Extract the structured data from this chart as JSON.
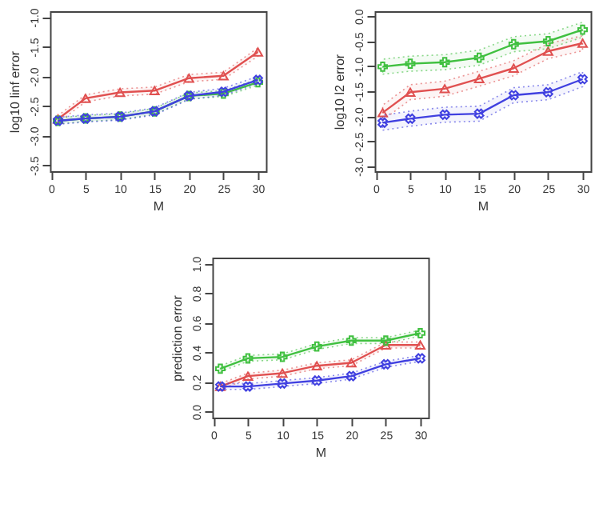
{
  "chart_data": [
    {
      "type": "line",
      "x": [
        1,
        5,
        10,
        15,
        20,
        25,
        30
      ],
      "xlabel": "M",
      "ylabel": "log10 linf error",
      "xlim": [
        -0.16,
        31.16
      ],
      "xticks": [
        0,
        5,
        10,
        15,
        20,
        25,
        30
      ],
      "ylim": [
        -3.6,
        -0.9
      ],
      "yticks": [
        -3.5,
        {
          "value": -3,
          "label": "-3.0"
        },
        -2.5,
        {
          "value": -2,
          "label": "-2.0"
        },
        -1.5,
        {
          "value": -1,
          "label": "-1.0"
        }
      ],
      "line_style": "solid",
      "series": [
        {
          "color": "#e05050",
          "marker": "triangle",
          "values": [
            -2.72,
            -2.37,
            -2.27,
            -2.24,
            -2.03,
            -1.99,
            -1.59
          ],
          "lower": [
            -2.78,
            -2.43,
            -2.33,
            -2.3,
            -2.09,
            -2.05,
            -1.66
          ],
          "upper": [
            -2.66,
            -2.31,
            -2.21,
            -2.18,
            -1.97,
            -1.93,
            -1.52
          ]
        },
        {
          "color": "#40c040",
          "marker": "plus",
          "values": [
            -2.75,
            -2.71,
            -2.68,
            -2.59,
            -2.33,
            -2.29,
            -2.1
          ],
          "lower": [
            -2.8,
            -2.76,
            -2.73,
            -2.64,
            -2.38,
            -2.34,
            -2.15
          ],
          "upper": [
            -2.7,
            -2.66,
            -2.63,
            -2.54,
            -2.28,
            -2.24,
            -2.05
          ]
        },
        {
          "color": "#4040e0",
          "marker": "cross",
          "values": [
            -2.75,
            -2.71,
            -2.68,
            -2.59,
            -2.33,
            -2.26,
            -2.06
          ],
          "lower": [
            -2.81,
            -2.77,
            -2.74,
            -2.65,
            -2.39,
            -2.32,
            -2.12
          ],
          "upper": [
            -2.69,
            -2.65,
            -2.62,
            -2.53,
            -2.27,
            -2.2,
            -2.0
          ]
        }
      ]
    },
    {
      "type": "line",
      "x": [
        1,
        5,
        10,
        15,
        20,
        25,
        30
      ],
      "xlabel": "M",
      "ylabel": "log10 l2 error",
      "xlim": [
        -0.16,
        31.16
      ],
      "xticks": [
        0,
        5,
        10,
        15,
        20,
        25,
        30
      ],
      "ylim": [
        -3.1,
        0.1
      ],
      "yticks": [
        {
          "value": -3,
          "label": "-3.0"
        },
        -2.5,
        {
          "value": -2,
          "label": "-2.0"
        },
        -1.5,
        {
          "value": -1,
          "label": "-1.0"
        },
        -0.5,
        {
          "value": 0,
          "label": "0.0"
        }
      ],
      "line_style": "solid",
      "series": [
        {
          "color": "#e05050",
          "marker": "triangle",
          "values": [
            -1.93,
            -1.52,
            -1.45,
            -1.25,
            -1.04,
            -0.7,
            -0.54
          ],
          "lower": [
            -2.08,
            -1.67,
            -1.6,
            -1.4,
            -1.19,
            -0.85,
            -0.69
          ],
          "upper": [
            -1.78,
            -1.37,
            -1.3,
            -1.1,
            -0.89,
            -0.55,
            -0.39
          ]
        },
        {
          "color": "#40c040",
          "marker": "plus",
          "values": [
            -1.01,
            -0.95,
            -0.92,
            -0.83,
            -0.56,
            -0.5,
            -0.27
          ],
          "lower": [
            -1.16,
            -1.1,
            -1.07,
            -0.98,
            -0.71,
            -0.65,
            -0.42
          ],
          "upper": [
            -0.86,
            -0.8,
            -0.77,
            -0.68,
            -0.41,
            -0.35,
            -0.12
          ]
        },
        {
          "color": "#4040e0",
          "marker": "cross",
          "values": [
            -2.13,
            -2.05,
            -1.97,
            -1.95,
            -1.58,
            -1.52,
            -1.26
          ],
          "lower": [
            -2.28,
            -2.2,
            -2.12,
            -2.1,
            -1.73,
            -1.67,
            -1.41
          ],
          "upper": [
            -1.98,
            -1.9,
            -1.82,
            -1.8,
            -1.43,
            -1.37,
            -1.11
          ]
        }
      ]
    },
    {
      "type": "line",
      "x": [
        1,
        5,
        10,
        15,
        20,
        25,
        30
      ],
      "xlabel": "M",
      "ylabel": "prediction error",
      "xlim": [
        -0.16,
        31.16
      ],
      "xticks": [
        0,
        5,
        10,
        15,
        20,
        25,
        30
      ],
      "ylim": [
        -0.04,
        1.04
      ],
      "yticks": [
        {
          "value": 0,
          "label": "0.0"
        },
        0.2,
        0.4,
        0.6,
        0.8,
        {
          "value": 1,
          "label": "1.0"
        }
      ],
      "line_style": "solid",
      "series": [
        {
          "color": "#e05050",
          "marker": "triangle",
          "values": [
            0.17,
            0.24,
            0.26,
            0.31,
            0.33,
            0.45,
            0.45
          ],
          "lower": [
            0.15,
            0.22,
            0.24,
            0.29,
            0.31,
            0.43,
            0.43
          ],
          "upper": [
            0.19,
            0.26,
            0.28,
            0.33,
            0.35,
            0.47,
            0.47
          ]
        },
        {
          "color": "#40c040",
          "marker": "plus",
          "values": [
            0.29,
            0.36,
            0.37,
            0.44,
            0.48,
            0.48,
            0.53
          ],
          "lower": [
            0.27,
            0.34,
            0.35,
            0.42,
            0.46,
            0.46,
            0.51
          ],
          "upper": [
            0.31,
            0.38,
            0.39,
            0.46,
            0.5,
            0.5,
            0.55
          ]
        },
        {
          "color": "#4040e0",
          "marker": "cross",
          "values": [
            0.17,
            0.17,
            0.19,
            0.21,
            0.24,
            0.32,
            0.36
          ],
          "lower": [
            0.15,
            0.15,
            0.17,
            0.19,
            0.22,
            0.3,
            0.34
          ],
          "upper": [
            0.19,
            0.19,
            0.21,
            0.23,
            0.26,
            0.34,
            0.38
          ]
        }
      ]
    }
  ]
}
